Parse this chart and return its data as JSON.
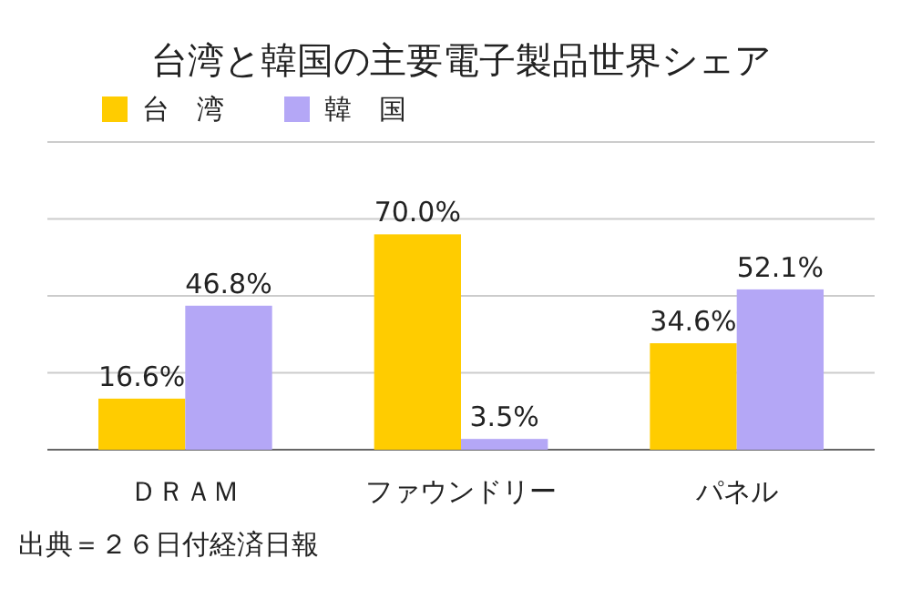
{
  "chart_data": {
    "type": "bar",
    "title": "台湾と韓国の主要電子製品世界シェア",
    "categories": [
      "ＤＲＡＭ",
      "ファウンドリー",
      "パネル"
    ],
    "series": [
      {
        "name": "台　湾",
        "color": "#ffcc00",
        "values": [
          16.6,
          70.0,
          34.6
        ],
        "value_labels": [
          "16.6%",
          "70.0%",
          "34.6%"
        ]
      },
      {
        "name": "韓　国",
        "color": "#b4a7f6",
        "values": [
          46.8,
          3.5,
          52.1
        ],
        "value_labels": [
          "46.8%",
          "3.5%",
          "52.1%"
        ]
      }
    ],
    "ylim": [
      0,
      100
    ],
    "yticks": [
      {
        "value": 0,
        "label": null
      },
      {
        "value": 25,
        "label": null
      },
      {
        "value": 50,
        "label": null
      },
      {
        "value": 75,
        "label": null
      },
      {
        "value": 100,
        "label": null
      }
    ],
    "grid": "y",
    "legend": "top left",
    "tick_labels": "x",
    "annotations": [
      "出典＝２６日付経済日報"
    ]
  }
}
